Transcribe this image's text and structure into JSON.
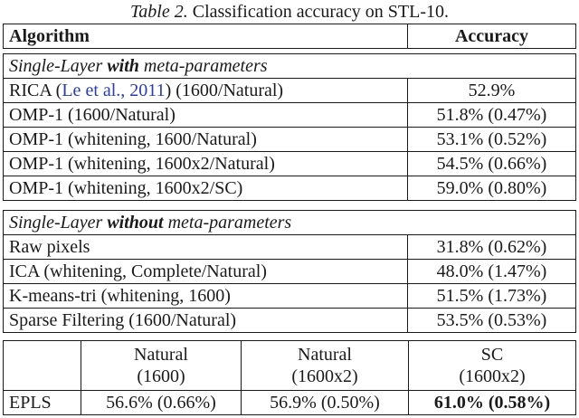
{
  "caption": {
    "label": "Table 2.",
    "text": "Classification accuracy on STL-10."
  },
  "header": {
    "algorithm": "Algorithm",
    "accuracy": "Accuracy"
  },
  "section_with": {
    "prefix": "Single-Layer ",
    "bold": "with",
    "suffix": " meta-parameters",
    "rows": [
      {
        "algo_pre": "RICA (",
        "cite": "Le et al., 2011",
        "algo_post": ") (1600/Natural)",
        "acc": "52.9%"
      },
      {
        "algo": "OMP-1 (1600/Natural)",
        "acc": "51.8% (0.47%)"
      },
      {
        "algo": "OMP-1 (whitening, 1600/Natural)",
        "acc": "53.1% (0.52%)"
      },
      {
        "algo": "OMP-1 (whitening, 1600x2/Natural)",
        "acc": "54.5% (0.66%)"
      },
      {
        "algo": "OMP-1 (whitening, 1600x2/SC)",
        "acc": "59.0% (0.80%)"
      }
    ]
  },
  "section_without": {
    "prefix": "Single-Layer ",
    "bold": "without",
    "suffix": " meta-parameters",
    "rows": [
      {
        "algo": "Raw pixels",
        "acc": "31.8% (0.62%)"
      },
      {
        "algo": "ICA (whitening, Complete/Natural)",
        "acc": "48.0% (1.47%)"
      },
      {
        "algo": "K-means-tri (whitening, 1600)",
        "acc": "51.5% (1.73%)"
      },
      {
        "algo": "Sparse Filtering (1600/Natural)",
        "acc": "53.5% (0.53%)"
      }
    ]
  },
  "epls": {
    "cols": [
      {
        "line1": "Natural",
        "line2": "(1600)"
      },
      {
        "line1": "Natural",
        "line2": "(1600x2)"
      },
      {
        "line1": "SC",
        "line2": "(1600x2)"
      }
    ],
    "row_label": "EPLS",
    "values": [
      "56.6% (0.66%)",
      "56.9% (0.50%)",
      "61.0% (0.58%)"
    ]
  }
}
